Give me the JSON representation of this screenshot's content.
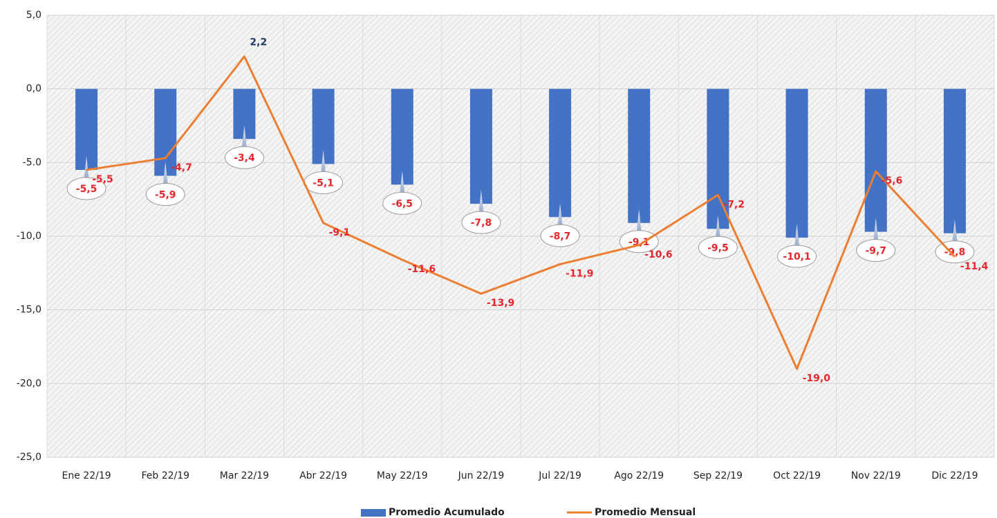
{
  "chart_data": {
    "type": "combo",
    "categories": [
      "Ene 22/19",
      "Feb 22/19",
      "Mar 22/19",
      "Abr 22/19",
      "May 22/19",
      "Jun 22/19",
      "Jul 22/19",
      "Ago 22/19",
      "Sep 22/19",
      "Oct 22/19",
      "Nov 22/19",
      "Dic 22/19"
    ],
    "series": [
      {
        "name": "Promedio Acumulado",
        "type": "bar",
        "color": "#4472c4",
        "values": [
          -5.5,
          -5.9,
          -3.4,
          -5.1,
          -6.5,
          -7.8,
          -8.7,
          -9.1,
          -9.5,
          -10.1,
          -9.7,
          -9.8
        ],
        "value_labels": [
          "-5,5",
          "-5,9",
          "-3,4",
          "-5,1",
          "-6,5",
          "-7,8",
          "-8,7",
          "-9,1",
          "-9,5",
          "-10,1",
          "-9,7",
          "-9,8"
        ]
      },
      {
        "name": "Promedio Mensual",
        "type": "line",
        "color": "#ed7d31",
        "values": [
          -5.5,
          -4.7,
          2.2,
          -9.1,
          -11.6,
          -13.9,
          -11.9,
          -10.6,
          -7.2,
          -19.0,
          -5.6,
          -11.4
        ],
        "value_labels": [
          "-5,5",
          "-4,7",
          "2,2",
          "-9,1",
          "-11,6",
          "-13,9",
          "-11,9",
          "-10,6",
          "-7,2",
          "-19,0",
          "-5,6",
          "-11,4"
        ],
        "value_label_colors": [
          "#e8252b",
          "#e8252b",
          "#1f3864",
          "#e8252b",
          "#e8252b",
          "#e8252b",
          "#e8252b",
          "#e8252b",
          "#e8252b",
          "#e8252b",
          "#e8252b",
          "#e8252b"
        ]
      }
    ],
    "ylim": [
      -25,
      5
    ],
    "yticks": [
      {
        "value": -25,
        "label": "-25,0"
      },
      {
        "value": -20,
        "label": "-20,0"
      },
      {
        "value": -15,
        "label": "-15,0"
      },
      {
        "value": -10,
        "label": "-10,0"
      },
      {
        "value": -5,
        "label": "-5.0"
      },
      {
        "value": 0,
        "label": "0,0"
      },
      {
        "value": 5,
        "label": "5,0"
      }
    ],
    "grid": true,
    "legend": "bottom"
  }
}
